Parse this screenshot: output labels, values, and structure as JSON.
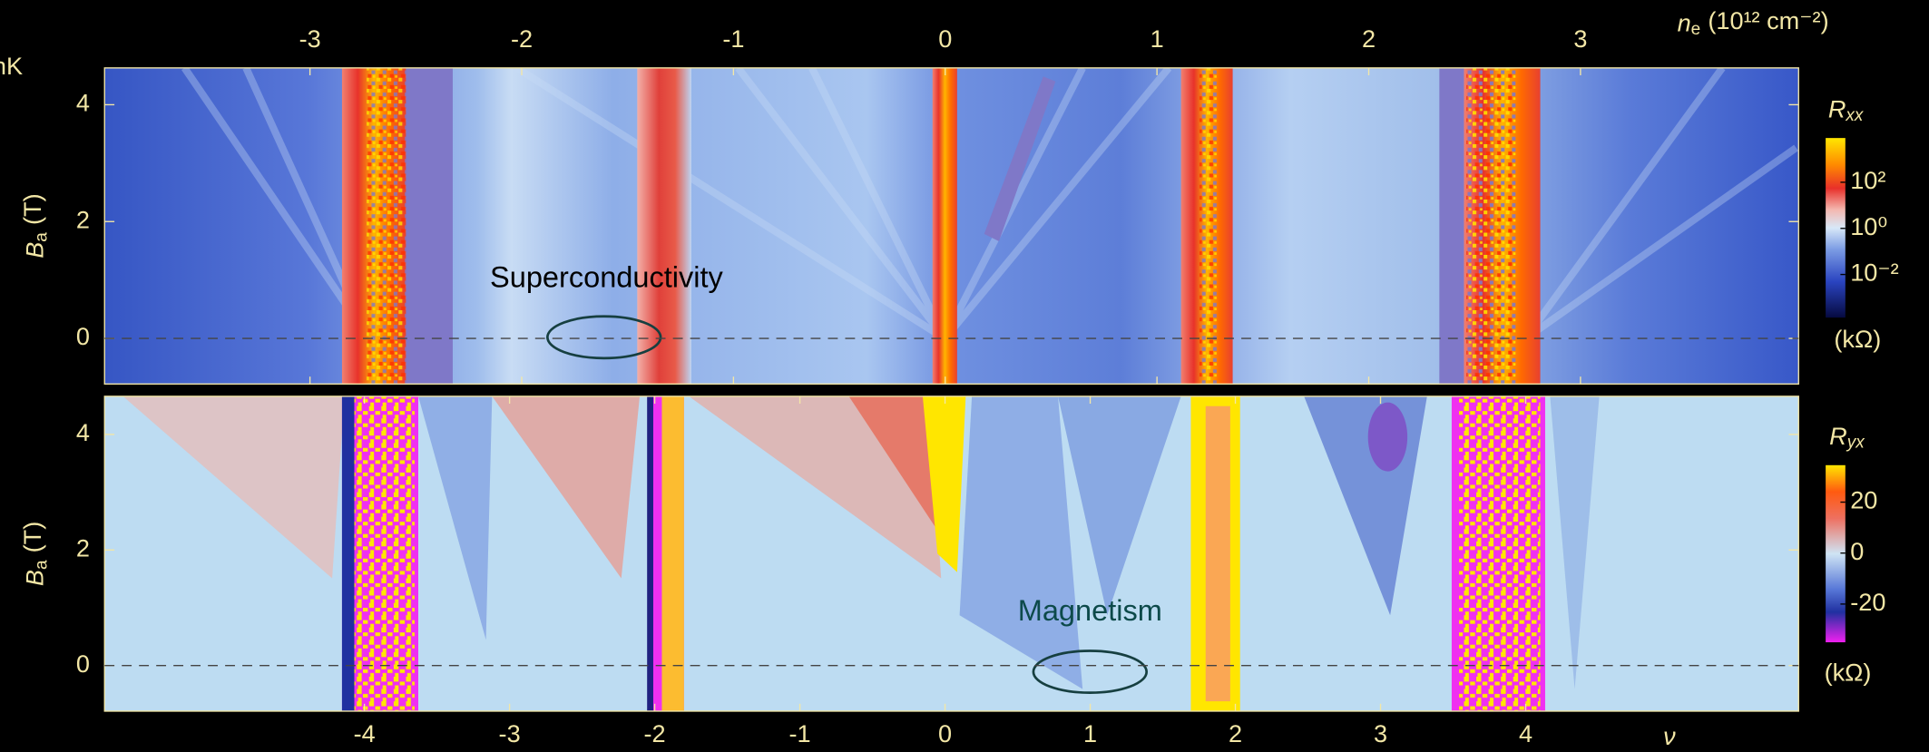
{
  "clipped_label": "nK",
  "chart_data": [
    {
      "type": "heatmap",
      "xlabel": {
        "symbol": "n",
        "subscript": "e",
        "unit": "(10¹² cm⁻²)"
      },
      "xlim": [
        -3.97,
        4.03
      ],
      "xticks": [
        -3,
        -2,
        -1,
        0,
        1,
        2,
        3
      ],
      "ylabel": {
        "symbol": "B",
        "subscript": "a",
        "unit": "(T)"
      },
      "ylim": [
        -0.78,
        4.63
      ],
      "yticks": [
        0,
        2,
        4
      ],
      "annotations": [
        "Superconductivity"
      ],
      "colorbar": {
        "label": {
          "symbol": "R",
          "subscript": "xx"
        },
        "unit": "(kΩ)",
        "log": true,
        "lim": [
          0.000135,
          8300
        ],
        "ticks": [
          {
            "value": 100,
            "label": "10²"
          },
          {
            "value": 1,
            "label": "10⁰"
          },
          {
            "value": 0.01,
            "label": "10⁻²"
          }
        ]
      }
    },
    {
      "type": "heatmap",
      "xlabel": {
        "symbol": "ν"
      },
      "xlim": [
        -5.79,
        5.88
      ],
      "xticks": [
        -4,
        -3,
        -2,
        -1,
        0,
        1,
        2,
        3,
        4
      ],
      "ylabel": {
        "symbol": "B",
        "subscript": "a",
        "unit": "(T)"
      },
      "ylim": [
        -0.79,
        4.66
      ],
      "yticks": [
        0,
        2,
        4
      ],
      "annotations": [
        "Magnetism"
      ],
      "colorbar": {
        "label": {
          "symbol": "R",
          "subscript": "yx"
        },
        "unit": "(kΩ)",
        "log": false,
        "lim": [
          -35,
          34.5
        ],
        "ticks": [
          20,
          0,
          -20
        ]
      }
    }
  ]
}
